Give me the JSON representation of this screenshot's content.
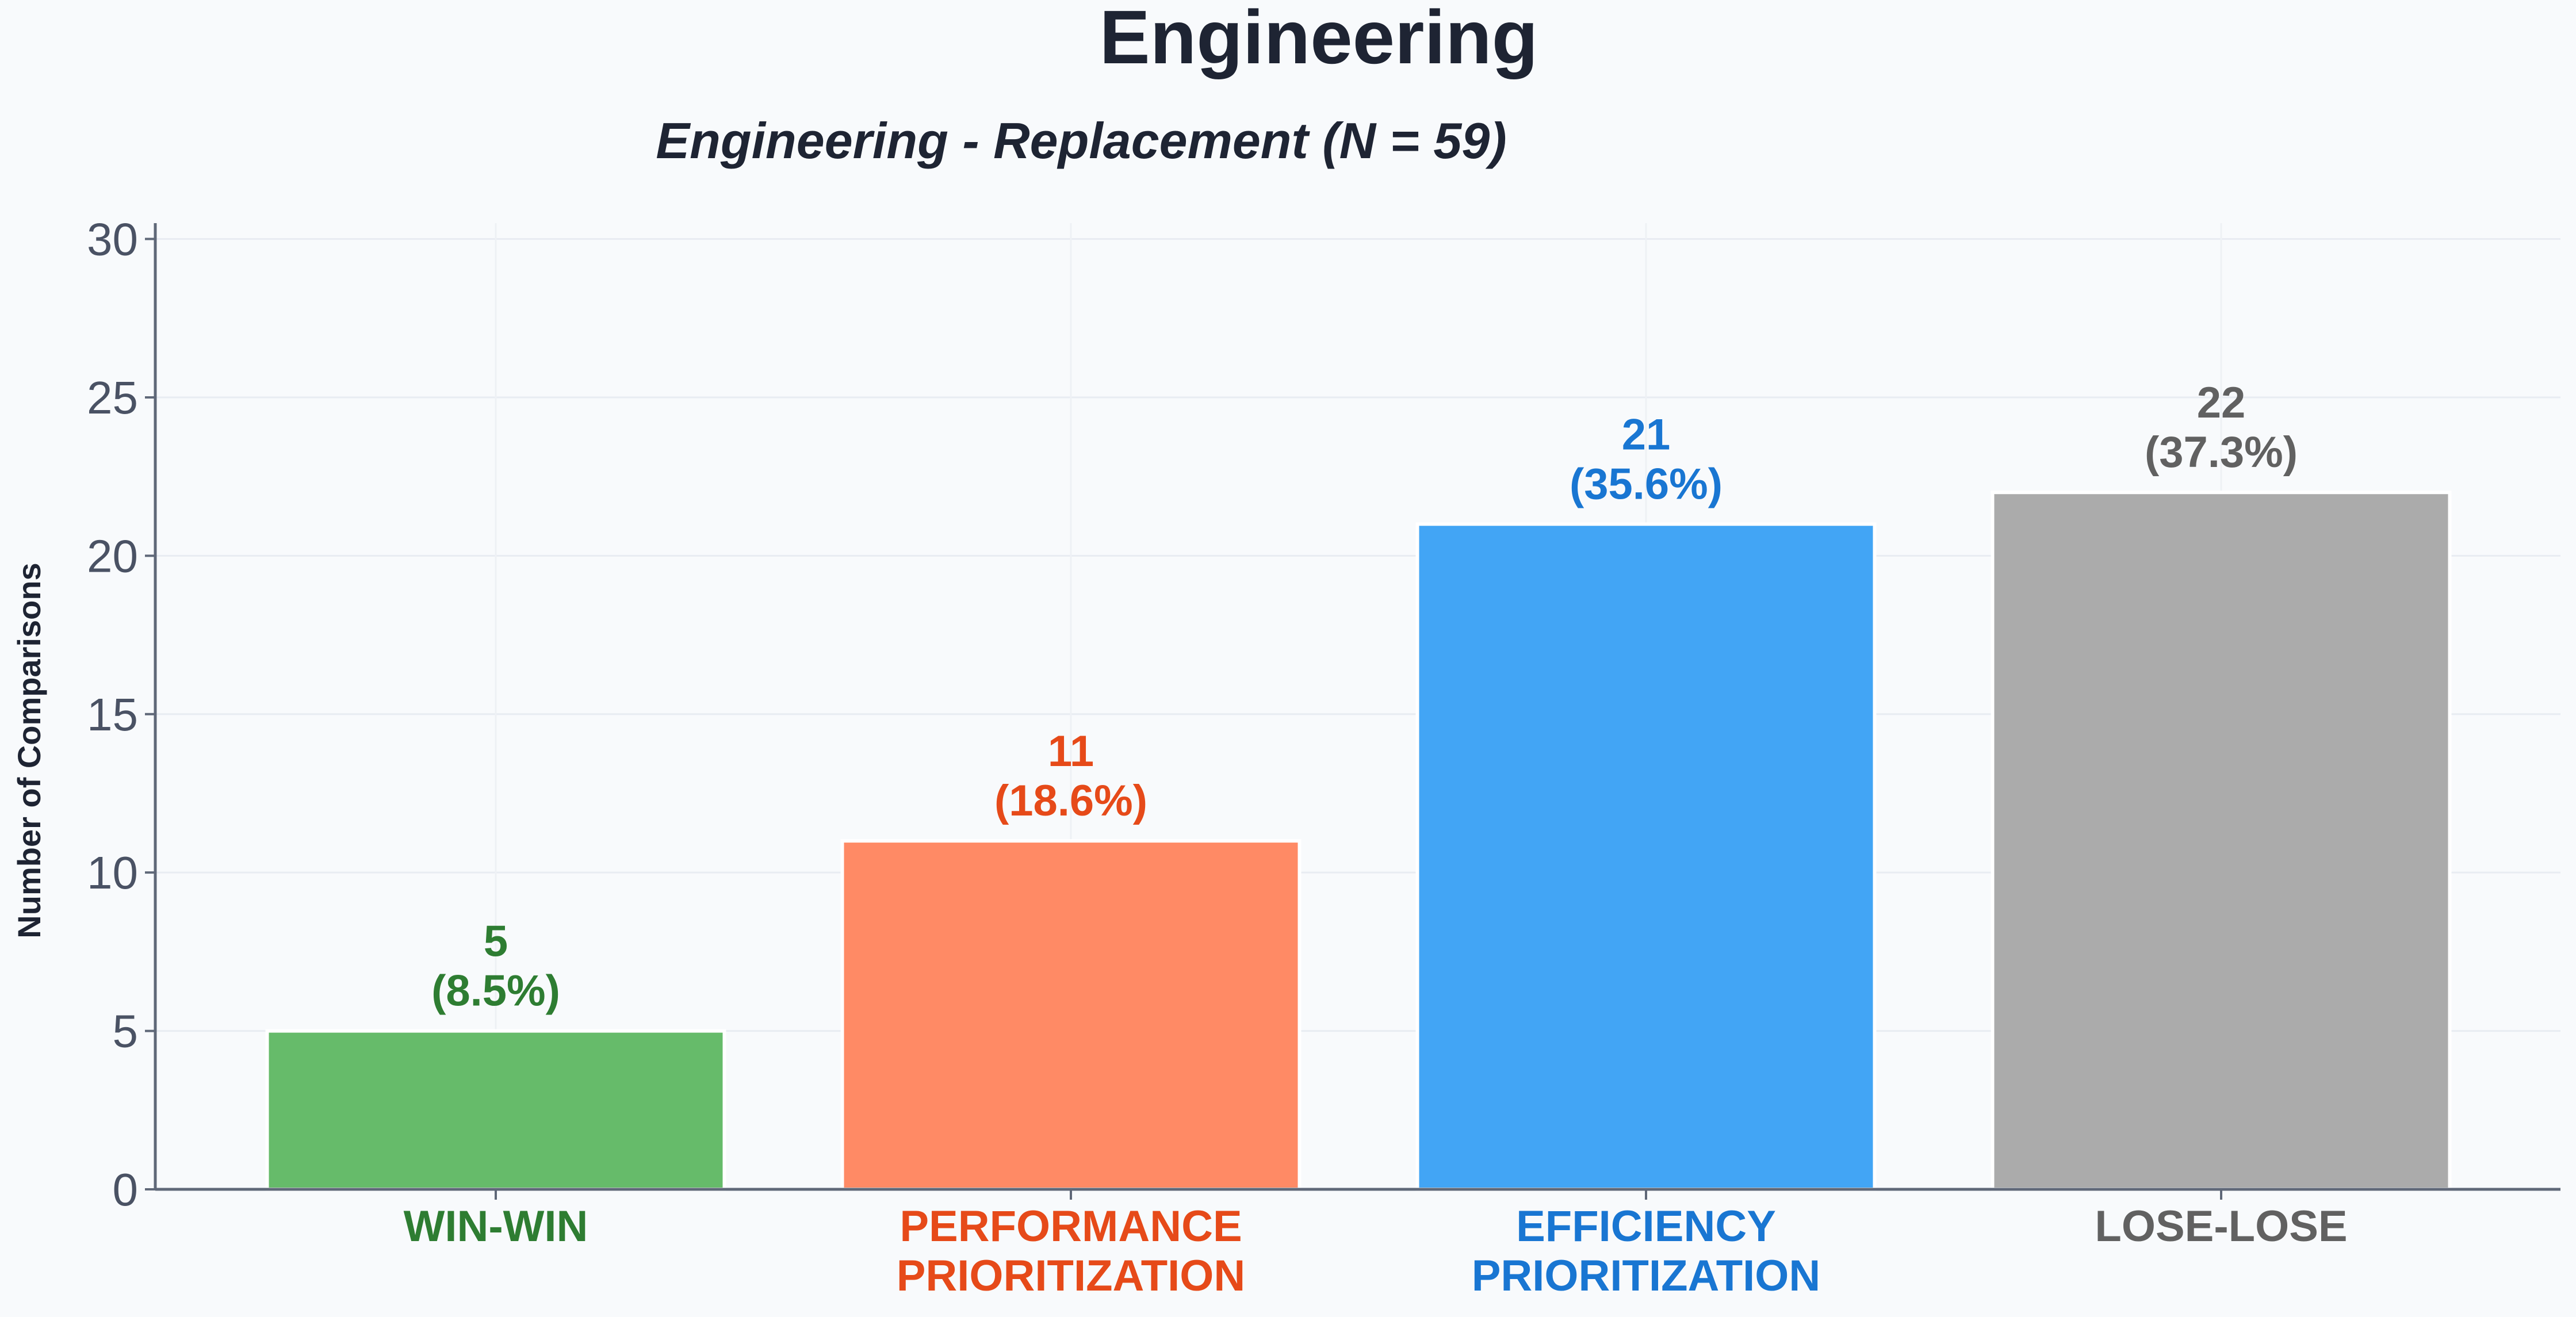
{
  "chart_data": {
    "type": "bar",
    "title": "Engineering",
    "subtitle": "Engineering - Replacement (N = 59)",
    "xlabel": "",
    "ylabel": "Number of Comparisons",
    "ylim": [
      0,
      30.5
    ],
    "yticks": [
      0,
      5,
      10,
      15,
      20,
      25,
      30
    ],
    "grid": true,
    "categories": [
      [
        "WIN-WIN"
      ],
      [
        "PERFORMANCE",
        "PRIORITIZATION"
      ],
      [
        "EFFICIENCY",
        "PRIORITIZATION"
      ],
      [
        "LOSE-LOSE"
      ]
    ],
    "values": [
      5,
      11,
      21,
      22
    ],
    "percentages": [
      "(8.5%)",
      "(18.6%)",
      "(35.6%)",
      "(37.3%)"
    ],
    "bar_colors": [
      "#66bb6a",
      "#ff8a65",
      "#42a5f5",
      "#ababab"
    ],
    "label_colors": [
      "#2e7d32",
      "#e64a19",
      "#1976d2",
      "#616161"
    ]
  }
}
